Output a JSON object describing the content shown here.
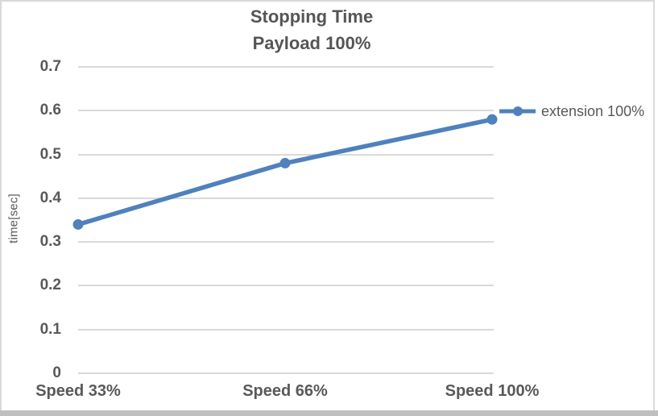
{
  "window": {
    "bottom_edge": ""
  },
  "chart": {
    "title_line1": "Stopping Time",
    "title_line2": "Payload 100%",
    "y_axis_title": "time[sec]"
  },
  "chart_data": {
    "type": "line",
    "title": "Stopping Time Payload 100%",
    "categories": [
      "Speed 33%",
      "Speed 66%",
      "Speed 100%"
    ],
    "series": [
      {
        "name": "extension 100%",
        "values": [
          0.34,
          0.48,
          0.58
        ]
      }
    ],
    "xlabel": "",
    "ylabel": "time[sec]",
    "ylim": [
      0,
      0.7
    ],
    "yticks": [
      "0",
      "0.1",
      "0.2",
      "0.3",
      "0.4",
      "0.5",
      "0.6",
      "0.7"
    ],
    "grid": "horizontal",
    "legend_position": "right-outside",
    "marker": "circle"
  },
  "colors": {
    "series_line": "#4f81bd",
    "gridline": "#d9d9d9",
    "text": "#595959",
    "title_text": "#555555",
    "frame_border": "#d9d9d9",
    "bottom_bar": "#bfbfbf"
  }
}
